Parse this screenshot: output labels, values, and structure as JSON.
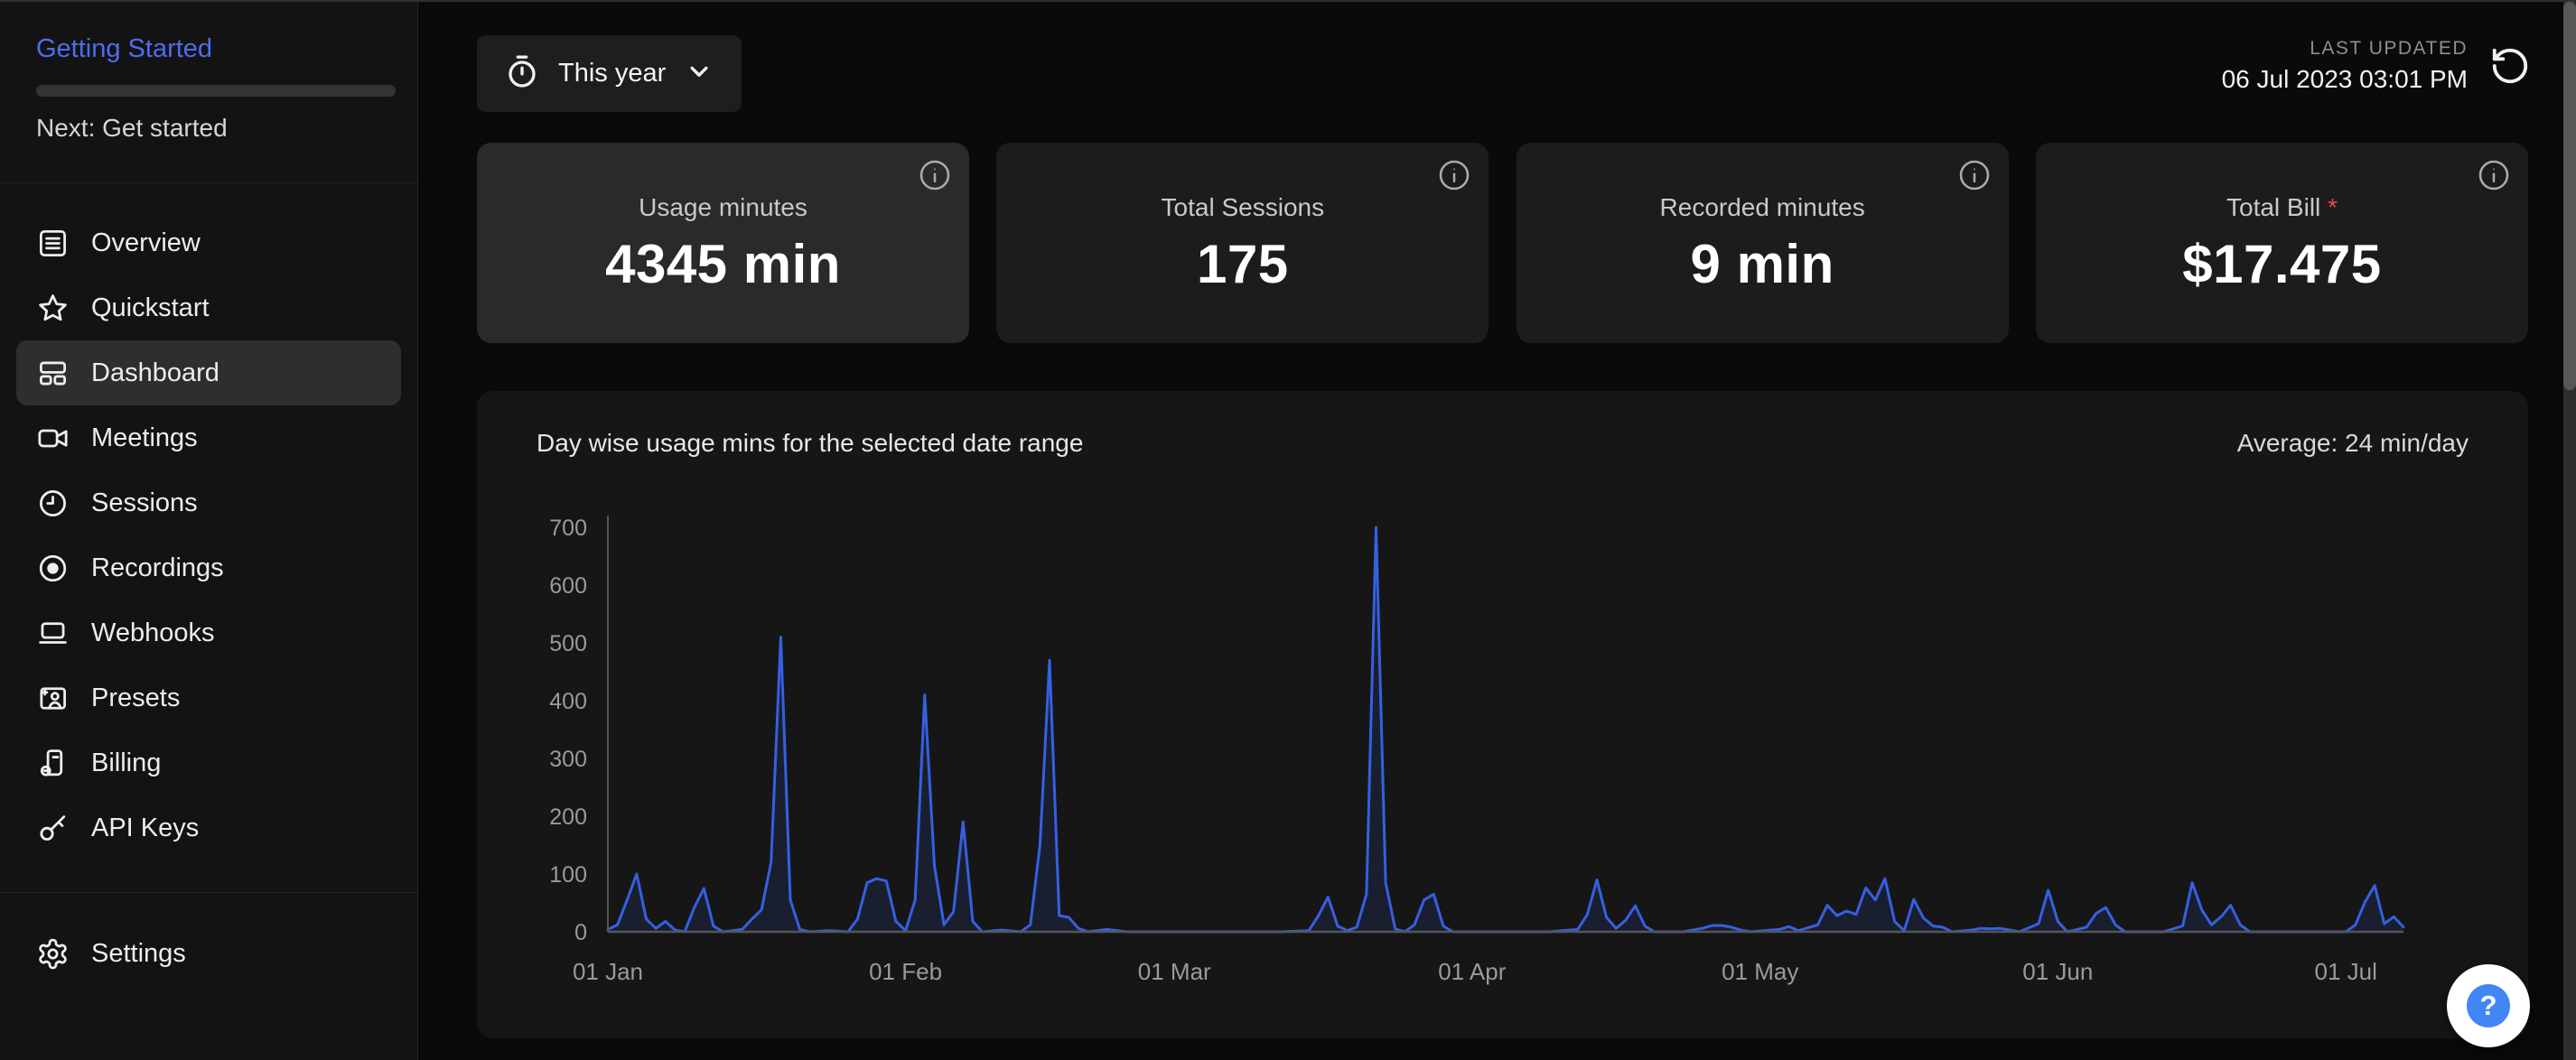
{
  "sidebar": {
    "getting_started": {
      "title": "Getting Started",
      "next": "Next: Get started",
      "progress_percent": 0
    },
    "nav": [
      {
        "label": "Overview"
      },
      {
        "label": "Quickstart"
      },
      {
        "label": "Dashboard",
        "active": true
      },
      {
        "label": "Meetings"
      },
      {
        "label": "Sessions"
      },
      {
        "label": "Recordings"
      },
      {
        "label": "Webhooks"
      },
      {
        "label": "Presets"
      },
      {
        "label": "Billing"
      },
      {
        "label": "API Keys"
      }
    ],
    "settings_label": "Settings"
  },
  "topbar": {
    "range_selector": {
      "label": "This year"
    },
    "last_updated": {
      "caption": "LAST UPDATED",
      "datetime": "06 Jul 2023 03:01 PM"
    }
  },
  "stat_cards": [
    {
      "label": "Usage minutes",
      "value": "4345 min"
    },
    {
      "label": "Total Sessions",
      "value": "175"
    },
    {
      "label": "Recorded minutes",
      "value": "9 min"
    },
    {
      "label": "Total Bill",
      "asterisk": "*",
      "value": "$17.475"
    }
  ],
  "chart_card": {
    "title": "Day wise usage mins for the selected date range",
    "average_label": "Average: 24 min/day"
  },
  "help_button": {
    "label": "?"
  },
  "colors": {
    "accent_blue": "#4f6cf0",
    "chart_line": "#3560e0",
    "chart_fill": "rgba(53,96,224,0.12)",
    "axis": "#555555",
    "tick_text": "#9a9a9a",
    "bill_asterisk": "#e5484d",
    "help_fab_inner": "#4285f4"
  },
  "chart_data": {
    "type": "area",
    "title": "Day wise usage mins for the selected date range",
    "annotation": "Average: 24 min/day",
    "xlabel": "",
    "ylabel": "",
    "ylim": [
      0,
      700
    ],
    "yticks": [
      0,
      100,
      200,
      300,
      400,
      500,
      600,
      700
    ],
    "x_range": [
      0,
      187
    ],
    "x_unit": "days since 01 Jan 2023",
    "xticks": [
      {
        "day": 0,
        "label": "01 Jan"
      },
      {
        "day": 31,
        "label": "01 Feb"
      },
      {
        "day": 59,
        "label": "01 Mar"
      },
      {
        "day": 90,
        "label": "01 Apr"
      },
      {
        "day": 120,
        "label": "01 May"
      },
      {
        "day": 151,
        "label": "01 Jun"
      },
      {
        "day": 181,
        "label": "01 Jul"
      }
    ],
    "grid": false,
    "legend": "none",
    "points": [
      [
        0,
        4
      ],
      [
        1,
        12
      ],
      [
        2,
        55
      ],
      [
        3,
        100
      ],
      [
        4,
        22
      ],
      [
        5,
        6
      ],
      [
        6,
        18
      ],
      [
        7,
        3
      ],
      [
        8,
        0
      ],
      [
        9,
        42
      ],
      [
        10,
        75
      ],
      [
        11,
        10
      ],
      [
        12,
        0
      ],
      [
        14,
        4
      ],
      [
        15,
        22
      ],
      [
        16,
        38
      ],
      [
        17,
        120
      ],
      [
        18,
        510
      ],
      [
        19,
        55
      ],
      [
        20,
        4
      ],
      [
        21,
        0
      ],
      [
        23,
        2
      ],
      [
        25,
        0
      ],
      [
        26,
        22
      ],
      [
        27,
        85
      ],
      [
        28,
        92
      ],
      [
        29,
        88
      ],
      [
        30,
        18
      ],
      [
        31,
        2
      ],
      [
        32,
        55
      ],
      [
        33,
        410
      ],
      [
        34,
        115
      ],
      [
        35,
        12
      ],
      [
        36,
        35
      ],
      [
        37,
        190
      ],
      [
        38,
        18
      ],
      [
        39,
        0
      ],
      [
        41,
        3
      ],
      [
        43,
        0
      ],
      [
        44,
        12
      ],
      [
        45,
        150
      ],
      [
        46,
        470
      ],
      [
        47,
        28
      ],
      [
        48,
        25
      ],
      [
        49,
        6
      ],
      [
        50,
        0
      ],
      [
        52,
        4
      ],
      [
        54,
        0
      ],
      [
        60,
        0
      ],
      [
        70,
        0
      ],
      [
        73,
        2
      ],
      [
        74,
        28
      ],
      [
        75,
        60
      ],
      [
        76,
        10
      ],
      [
        77,
        2
      ],
      [
        78,
        8
      ],
      [
        79,
        65
      ],
      [
        80,
        700
      ],
      [
        81,
        85
      ],
      [
        82,
        5
      ],
      [
        83,
        0
      ],
      [
        84,
        12
      ],
      [
        85,
        55
      ],
      [
        86,
        65
      ],
      [
        87,
        10
      ],
      [
        88,
        0
      ],
      [
        92,
        0
      ],
      [
        98,
        0
      ],
      [
        101,
        4
      ],
      [
        102,
        30
      ],
      [
        103,
        90
      ],
      [
        104,
        25
      ],
      [
        105,
        6
      ],
      [
        106,
        20
      ],
      [
        107,
        45
      ],
      [
        108,
        10
      ],
      [
        109,
        0
      ],
      [
        112,
        0
      ],
      [
        114,
        6
      ],
      [
        115,
        11
      ],
      [
        116,
        11
      ],
      [
        117,
        8
      ],
      [
        118,
        3
      ],
      [
        119,
        0
      ],
      [
        122,
        4
      ],
      [
        123,
        9
      ],
      [
        124,
        2
      ],
      [
        126,
        12
      ],
      [
        127,
        46
      ],
      [
        128,
        28
      ],
      [
        129,
        36
      ],
      [
        130,
        30
      ],
      [
        131,
        76
      ],
      [
        132,
        55
      ],
      [
        133,
        92
      ],
      [
        134,
        18
      ],
      [
        135,
        2
      ],
      [
        136,
        56
      ],
      [
        137,
        24
      ],
      [
        138,
        10
      ],
      [
        139,
        8
      ],
      [
        140,
        0
      ],
      [
        142,
        3
      ],
      [
        143,
        6
      ],
      [
        144,
        5
      ],
      [
        145,
        6
      ],
      [
        146,
        3
      ],
      [
        147,
        0
      ],
      [
        149,
        14
      ],
      [
        150,
        72
      ],
      [
        151,
        18
      ],
      [
        152,
        0
      ],
      [
        154,
        8
      ],
      [
        155,
        32
      ],
      [
        156,
        42
      ],
      [
        157,
        12
      ],
      [
        158,
        0
      ],
      [
        162,
        0
      ],
      [
        164,
        10
      ],
      [
        165,
        85
      ],
      [
        166,
        38
      ],
      [
        167,
        12
      ],
      [
        168,
        26
      ],
      [
        169,
        46
      ],
      [
        170,
        12
      ],
      [
        171,
        0
      ],
      [
        176,
        0
      ],
      [
        181,
        0
      ],
      [
        182,
        12
      ],
      [
        183,
        52
      ],
      [
        184,
        80
      ],
      [
        185,
        14
      ],
      [
        186,
        26
      ],
      [
        187,
        8
      ]
    ]
  }
}
